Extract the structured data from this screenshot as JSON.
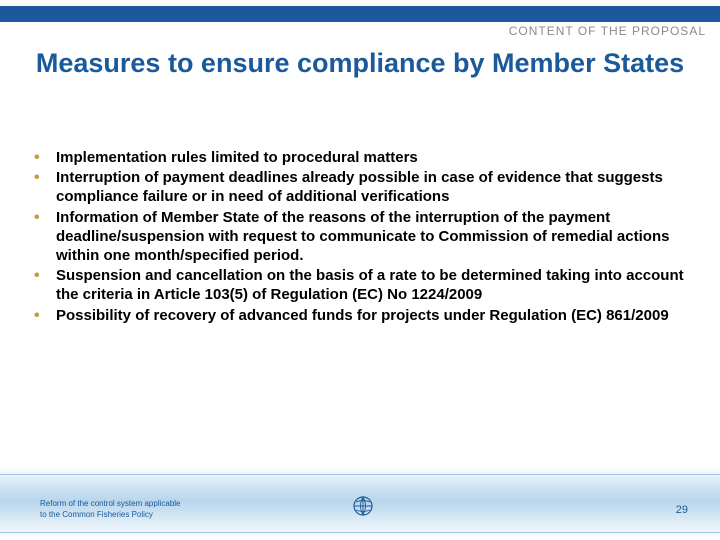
{
  "colors": {
    "bar": "#1a5a9a",
    "header_text": "#8a8a8a",
    "title_text": "#1a5a9a",
    "bullet_color": "#c49a3a",
    "footer_text": "#1a5a9a",
    "page_number": "#1a5a9a",
    "icon_stroke": "#1a5a9a"
  },
  "header": {
    "label": "CONTENT OF THE PROPOSAL"
  },
  "title": "Measures to ensure compliance by Member States",
  "bullets": [
    "Implementation rules limited to procedural matters",
    "Interruption of payment deadlines already possible in case of evidence that suggests compliance failure or in need of additional verifications",
    "Information of Member State of the reasons of the interruption of the payment deadline/suspension with request to communicate to Commission of remedial actions within one month/specified period.",
    "Suspension and cancellation on the basis of a rate to be determined taking into account the criteria in Article 103(5) of Regulation (EC) No 1224/2009",
    "Possibility of recovery of advanced funds for projects under Regulation (EC) 861/2009"
  ],
  "footer": {
    "line1": "Reform of the control system applicable",
    "line2": "to the Common Fisheries Policy",
    "page": "29"
  }
}
